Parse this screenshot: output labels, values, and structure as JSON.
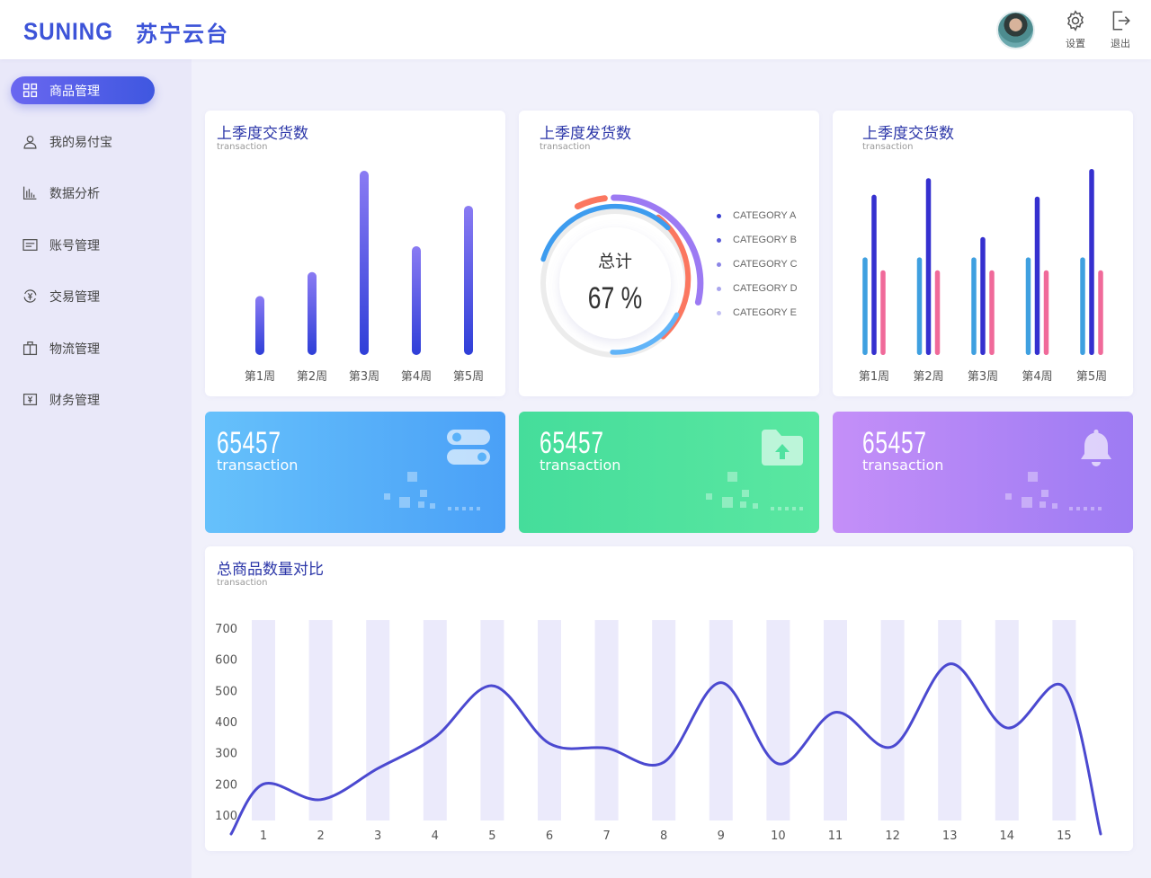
{
  "header": {
    "logo_en": "SUNING",
    "logo_cn": "苏宁云台",
    "settings_label": "设置",
    "logout_label": "退出"
  },
  "sidebar": {
    "items": [
      {
        "label": "商品管理",
        "icon": "grid-icon",
        "active": true
      },
      {
        "label": "我的易付宝",
        "icon": "user-icon"
      },
      {
        "label": "数据分析",
        "icon": "bar-chart-icon"
      },
      {
        "label": "账号管理",
        "icon": "card-icon"
      },
      {
        "label": "交易管理",
        "icon": "yen-exchange-icon"
      },
      {
        "label": "物流管理",
        "icon": "package-icon"
      },
      {
        "label": "财务管理",
        "icon": "yen-wallet-icon"
      }
    ]
  },
  "cards": {
    "bar1": {
      "title": "上季度交货数",
      "subtitle": "transaction"
    },
    "donut": {
      "title": "上季度发货数",
      "subtitle": "transaction",
      "center_label": "总计",
      "center_value": "67 %"
    },
    "bar2": {
      "title": "上季度交货数",
      "subtitle": "transaction"
    },
    "line": {
      "title": "总商品数量对比",
      "subtitle": "transaction"
    }
  },
  "stats": [
    {
      "value": "65457",
      "label": "transaction",
      "icon": "toggle-icon",
      "color_from": "#66c1fb",
      "color_to": "#4aa0f7"
    },
    {
      "value": "65457",
      "label": "transaction",
      "icon": "folder-upload-icon",
      "color_from": "#45dd9b",
      "color_to": "#5ae7a1"
    },
    {
      "value": "65457",
      "label": "transaction",
      "icon": "bell-icon",
      "color_from": "#c48ff8",
      "color_to": "#9d7bf3"
    }
  ],
  "chart_data": [
    {
      "type": "bar",
      "title": "上季度交货数",
      "categories": [
        "第1周",
        "第2周",
        "第3周",
        "第4周",
        "第5周"
      ],
      "values": [
        32,
        45,
        100,
        59,
        81
      ],
      "colors": [
        "#8a7bf3",
        "#2f3fd8"
      ]
    },
    {
      "type": "pie",
      "title": "上季度发货数",
      "center_value": "67 %",
      "legend": [
        "CATEGORY A",
        "CATEGORY B",
        "CATEGORY C",
        "CATEGORY D",
        "CATEGORY E"
      ],
      "legend_colors": [
        "#3a3fd0",
        "#5a5ad8",
        "#8c86e6",
        "#a9a5ee",
        "#c4c1f3"
      ]
    },
    {
      "type": "bar",
      "title": "上季度交货数",
      "categories": [
        "第1周",
        "第2周",
        "第3周",
        "第4周",
        "第5周"
      ],
      "series": [
        {
          "values": [
            53,
            53,
            53,
            53,
            53
          ],
          "color": "#3fa0e0"
        },
        {
          "values": [
            87,
            96,
            64,
            86,
            101
          ],
          "color": "#3530cf"
        },
        {
          "values": [
            46,
            46,
            46,
            46,
            46
          ],
          "color": "#f06a9a"
        }
      ]
    },
    {
      "type": "line",
      "title": "总商品数量对比",
      "x": [
        1,
        2,
        3,
        4,
        5,
        6,
        7,
        8,
        9,
        10,
        11,
        12,
        13,
        14,
        15
      ],
      "values": [
        200,
        150,
        250,
        350,
        515,
        330,
        315,
        270,
        525,
        265,
        430,
        320,
        585,
        380,
        510
      ],
      "y_ticks": [
        100,
        200,
        300,
        400,
        500,
        600,
        700
      ],
      "ylim": [
        40,
        760
      ],
      "line_color": "#4b49d0",
      "column_color": "#ebeafb"
    }
  ]
}
